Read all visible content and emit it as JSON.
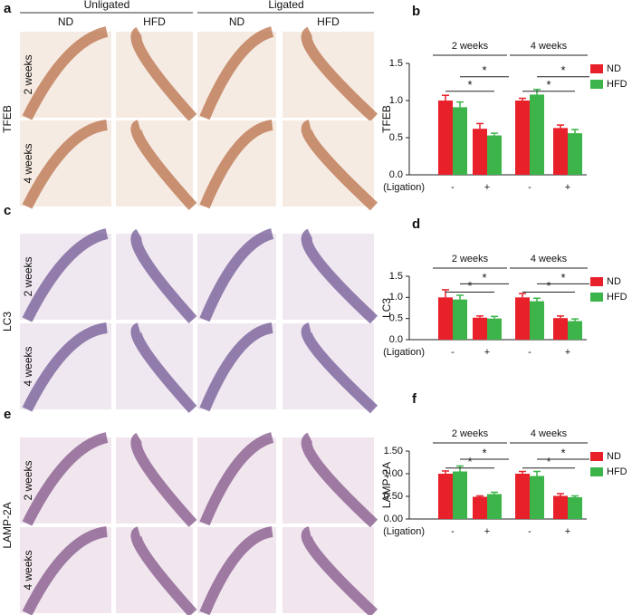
{
  "panels": [
    {
      "letter": "a",
      "marker": "TFEB"
    },
    {
      "letter": "c",
      "marker": "LC3"
    },
    {
      "letter": "e",
      "marker": "LAMP-2A"
    }
  ],
  "column_groups": [
    "Unligated",
    "Ligated"
  ],
  "columns": [
    "ND",
    "HFD",
    "ND",
    "HFD"
  ],
  "rows": [
    "2 weeks",
    "4 weeks"
  ],
  "chart_data": [
    {
      "type": "bar",
      "letter": "b",
      "ylabel": "TFEB",
      "groups": [
        "2 weeks",
        "4 weeks"
      ],
      "x_label": "(Ligation)",
      "categories": [
        "-",
        "+",
        "-",
        "+"
      ],
      "series": [
        {
          "name": "ND",
          "color": "#e8202a",
          "values": [
            1.0,
            0.62,
            1.0,
            0.63
          ],
          "errors": [
            0.07,
            0.07,
            0.03,
            0.04
          ]
        },
        {
          "name": "HFD",
          "color": "#3cb44a",
          "values": [
            0.91,
            0.53,
            1.08,
            0.56
          ],
          "errors": [
            0.07,
            0.03,
            0.07,
            0.05
          ]
        }
      ],
      "ylim": [
        0,
        1.5
      ],
      "yticks": [
        {
          "value": 0,
          "label": "0.0"
        },
        0.5,
        {
          "value": 1,
          "label": "1.0"
        },
        1.5
      ],
      "significance": [
        "*",
        "*",
        "*",
        "*"
      ],
      "legend": "right"
    },
    {
      "type": "bar",
      "letter": "d",
      "ylabel": "LC3",
      "groups": [
        "2 weeks",
        "4 weeks"
      ],
      "x_label": "(Ligation)",
      "categories": [
        "-",
        "+",
        "-",
        "+"
      ],
      "series": [
        {
          "name": "ND",
          "color": "#e8202a",
          "values": [
            1.0,
            0.52,
            1.0,
            0.51
          ],
          "errors": [
            0.18,
            0.04,
            0.09,
            0.05
          ]
        },
        {
          "name": "HFD",
          "color": "#3cb44a",
          "values": [
            0.95,
            0.5,
            0.91,
            0.44
          ],
          "errors": [
            0.1,
            0.05,
            0.07,
            0.05
          ]
        }
      ],
      "ylim": [
        0,
        1.5
      ],
      "yticks": [
        {
          "value": 0,
          "label": "0.0"
        },
        0.5,
        {
          "value": 1,
          "label": "1.0"
        },
        1.5
      ],
      "significance": [
        "*",
        "*",
        "*",
        "*"
      ],
      "legend": "right"
    },
    {
      "type": "bar",
      "letter": "f",
      "ylabel": "LAMP-2A",
      "groups": [
        "2 weeks",
        "4 weeks"
      ],
      "x_label": "(Ligation)",
      "categories": [
        "-",
        "+",
        "-",
        "+"
      ],
      "series": [
        {
          "name": "ND",
          "color": "#e8202a",
          "values": [
            1.0,
            0.49,
            1.0,
            0.51
          ],
          "errors": [
            0.06,
            0.02,
            0.05,
            0.05
          ]
        },
        {
          "name": "HFD",
          "color": "#3cb44a",
          "values": [
            1.05,
            0.55,
            0.95,
            0.48
          ],
          "errors": [
            0.12,
            0.04,
            0.1,
            0.03
          ]
        }
      ],
      "ylim": [
        0,
        1.5
      ],
      "yticks": [
        {
          "value": 0,
          "label": "0.00"
        },
        {
          "value": 0.5,
          "label": "0.50"
        },
        {
          "value": 1,
          "label": "1.00"
        },
        {
          "value": 1.5,
          "label": "1.50"
        }
      ],
      "significance": [
        "*",
        "*",
        "*",
        "*"
      ],
      "legend": "right"
    }
  ]
}
